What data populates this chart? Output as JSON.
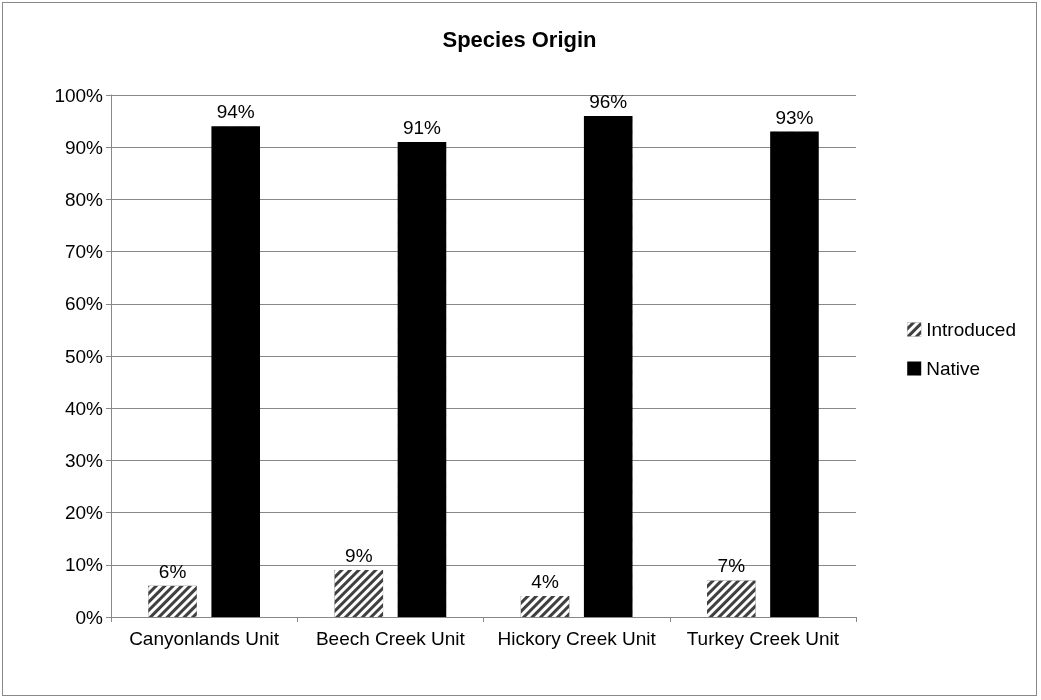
{
  "chart_data": {
    "type": "bar",
    "title": "Species Origin",
    "categories": [
      "Canyonlands Unit",
      "Beech Creek Unit",
      "Hickory Creek Unit",
      "Turkey Creek Unit"
    ],
    "series": [
      {
        "name": "Introduced",
        "color": "#404040",
        "values": [
          6,
          9,
          4,
          7
        ],
        "value_labels": [
          "6%",
          "9%",
          "4%",
          "7%"
        ]
      },
      {
        "name": "Native",
        "color": "#000000",
        "values": [
          94,
          91,
          96,
          93
        ],
        "value_labels": [
          "94%",
          "91%",
          "96%",
          "93%"
        ]
      }
    ],
    "ylim": [
      0,
      100
    ],
    "yticks": [
      {
        "value": 0,
        "label": "0%"
      },
      {
        "value": 10,
        "label": "10%"
      },
      {
        "value": 20,
        "label": "20%"
      },
      {
        "value": 30,
        "label": "30%"
      },
      {
        "value": 40,
        "label": "40%"
      },
      {
        "value": 50,
        "label": "50%"
      },
      {
        "value": 60,
        "label": "60%"
      },
      {
        "value": 70,
        "label": "70%"
      },
      {
        "value": 80,
        "label": "80%"
      },
      {
        "value": 90,
        "label": "90%"
      },
      {
        "value": 100,
        "label": "100%"
      }
    ],
    "grid": "y",
    "legend": "right"
  }
}
